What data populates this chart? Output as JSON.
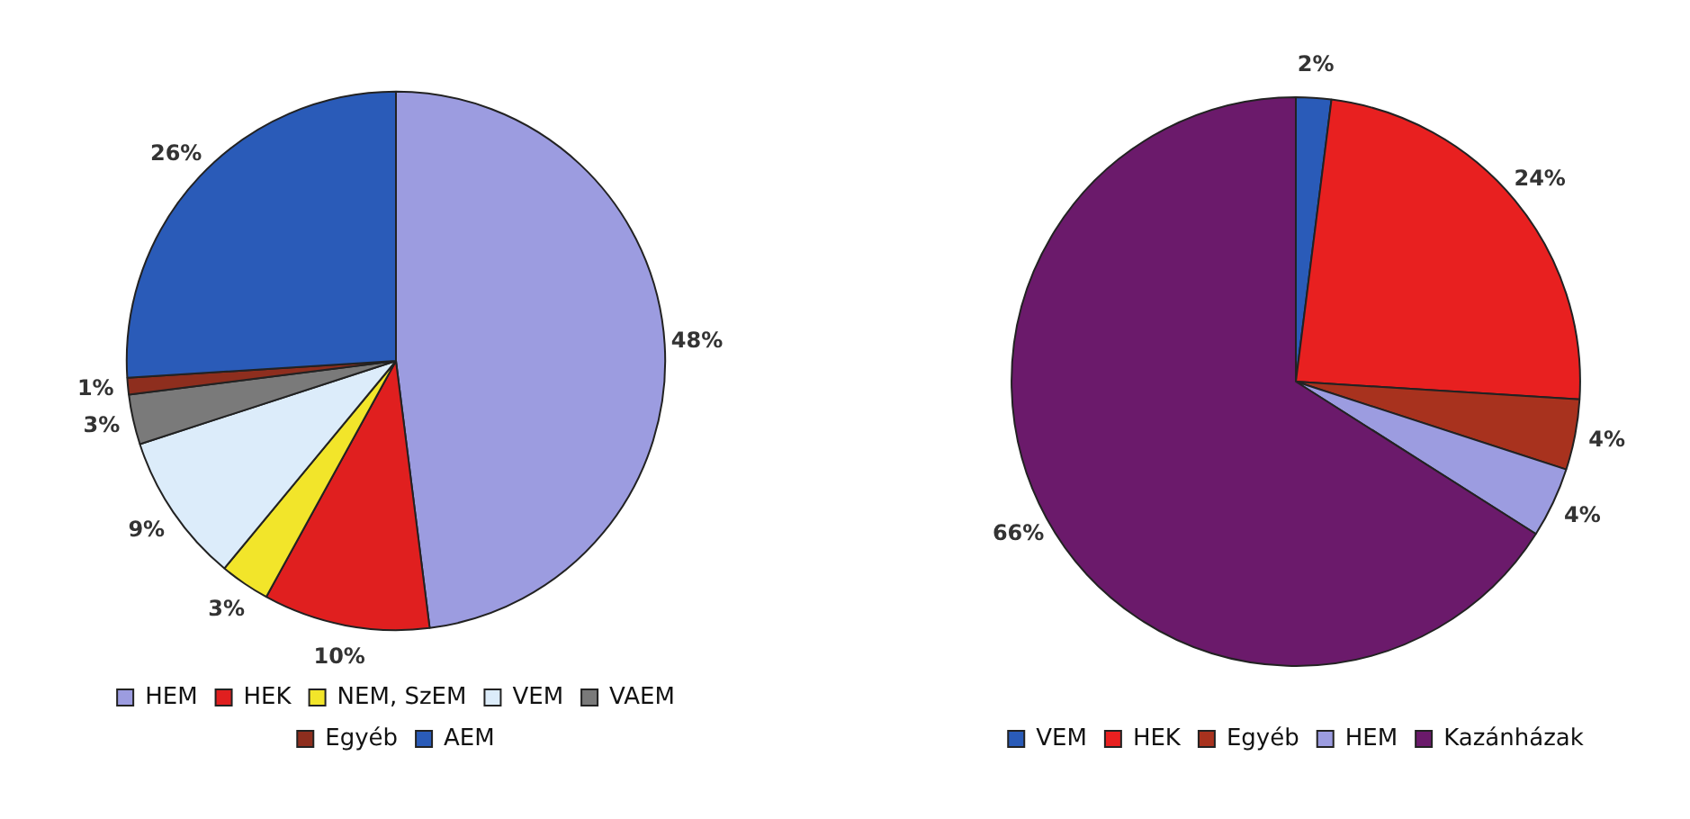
{
  "chart_data": [
    {
      "type": "pie",
      "categories": [
        "HEM",
        "HEK",
        "NEM, SzEM",
        "VEM",
        "VAEM",
        "Egyéb",
        "AEM"
      ],
      "values": [
        48,
        10,
        3,
        9,
        3,
        1,
        26
      ],
      "value_labels": [
        "48%",
        "10%",
        "3%",
        "9%",
        "3%",
        "1%",
        "26%"
      ],
      "colors": [
        "#9c9ce0",
        "#e01f1f",
        "#f2e52a",
        "#dcecfa",
        "#7a7a7a",
        "#8e2e1e",
        "#2a5bb8"
      ],
      "legend": "bottom"
    },
    {
      "type": "pie",
      "categories": [
        "VEM",
        "HEK",
        "Egyéb",
        "HEM",
        "Kazánházak"
      ],
      "values": [
        2,
        24,
        4,
        4,
        66
      ],
      "value_labels": [
        "2%",
        "24%",
        "4%",
        "4%",
        "66%"
      ],
      "colors": [
        "#2a5bb8",
        "#e82020",
        "#a8321e",
        "#9c9ce0",
        "#6b1a6b"
      ],
      "legend": "bottom"
    }
  ]
}
